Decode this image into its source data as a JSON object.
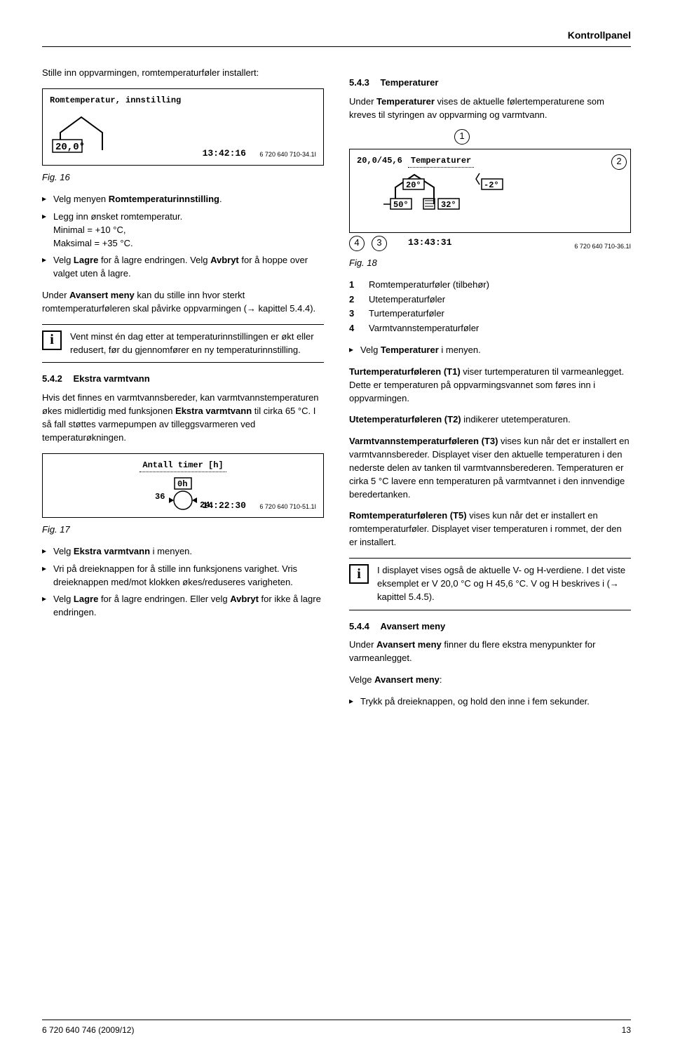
{
  "header": {
    "title": "Kontrollpanel"
  },
  "left": {
    "intro": "Stille inn oppvarmingen, romtemperaturføler installert:",
    "display1": {
      "title": "Romtemperatur, innstilling",
      "value": "20,0°",
      "time": "13:42:16",
      "code": "6 720 640 710-34.1I"
    },
    "fig16": "Fig. 16",
    "bullets1": [
      "Velg menyen <b>Romtemperaturinnstilling</b>.",
      "Legg inn ønsket romtemperatur.<br>Minimal = +10 °C,<br>Maksimal = +35 °C.",
      "Velg <b>Lagre</b> for å lagre endringen. Velg <b>Avbryt</b> for å hoppe over valget uten å lagre."
    ],
    "para1": "Under <b>Avansert meny</b> kan du stille inn hvor sterkt romtemperaturføleren skal påvirke oppvarmingen (→ kapittel 5.4.4).",
    "info1": "Vent minst én dag etter at temperaturinnstillingen er økt eller redusert, før du gjennomfører en ny temperaturinnstilling.",
    "sec542_num": "5.4.2",
    "sec542_title": "Ekstra varmtvann",
    "sec542_body": "Hvis det finnes en varmtvannsbereder, kan varmtvannstemperaturen økes midlertidig med funksjonen <b>Ekstra varmtvann</b> til cirka 65 °C. I så fall støttes varmepumpen av tilleggsvarmeren ved temperaturøkningen.",
    "display2": {
      "title": "Antall timer [h]",
      "value": "0h",
      "left_num": "36",
      "right_num": "24",
      "time": "14:22:30",
      "code": "6 720 640 710-51.1I"
    },
    "fig17": "Fig. 17",
    "bullets2": [
      "Velg <b>Ekstra varmtvann</b> i menyen.",
      "Vri på dreieknappen for å stille inn funksjonens varighet. Vris dreieknappen med/mot klokken økes/reduseres varigheten.",
      "Velg <b>Lagre</b> for å lagre endringen. Eller velg <b>Avbryt</b> for ikke å lagre endringen."
    ]
  },
  "right": {
    "sec543_num": "5.4.3",
    "sec543_title": "Temperaturer",
    "sec543_body": "Under <b>Temperaturer</b> vises de aktuelle følertemperaturene som kreves til styringen av oppvarming og varmtvann.",
    "display3": {
      "title": "Temperaturer",
      "vh": "20,0/45,6",
      "top": "20°",
      "right": "-2°",
      "bottom_left": "50°",
      "bottom_right": "32°",
      "time": "13:43:31",
      "code": "6 720 640 710-36.1I",
      "call1": "1",
      "call2": "2",
      "call3": "3",
      "call4": "4"
    },
    "fig18": "Fig. 18",
    "legend": [
      {
        "n": "1",
        "t": "Romtemperaturføler (tilbehør)"
      },
      {
        "n": "2",
        "t": "Utetemperaturføler"
      },
      {
        "n": "3",
        "t": "Turtemperaturføler"
      },
      {
        "n": "4",
        "t": "Varmtvannstemperaturføler"
      }
    ],
    "bullet_sel": "Velg <b>Temperaturer</b> i menyen.",
    "p_t1": "<b>Turtemperaturføleren (T1)</b> viser turtemperaturen til varmeanlegget. Dette er temperaturen på oppvarmingsvannet som føres inn i oppvarmingen.",
    "p_t2": "<b>Utetemperaturføleren (T2)</b> indikerer utetemperaturen.",
    "p_t3": "<b>Varmtvannstemperaturføleren (T3)</b> vises kun når det er installert en varmtvannsbereder. Displayet viser den aktuelle temperaturen i den nederste delen av tanken til varmtvannsberederen. Temperaturen er cirka 5 °C lavere enn temperaturen på varmtvannet i den innvendige beredertanken.",
    "p_t5": "<b>Romtemperaturføleren (T5)</b> vises kun når det er installert en romtemperaturføler. Displayet viser temperaturen i rommet, der den er installert.",
    "info2": "I displayet vises også de aktuelle V- og H-verdiene. I det viste eksemplet er V 20,0 °C og H 45,6 °C. V og H beskrives i (→ kapittel 5.4.5).",
    "sec544_num": "5.4.4",
    "sec544_title": "Avansert meny",
    "sec544_body": "Under <b>Avansert meny</b> finner du flere ekstra menypunkter for varmeanlegget.",
    "sel_adv": "Velge <b>Avansert meny</b>:",
    "bullet_adv": "Trykk på dreieknappen, og hold den inne i fem sekunder."
  },
  "footer": {
    "doc": "6 720 640 746 (2009/12)",
    "page": "13"
  }
}
